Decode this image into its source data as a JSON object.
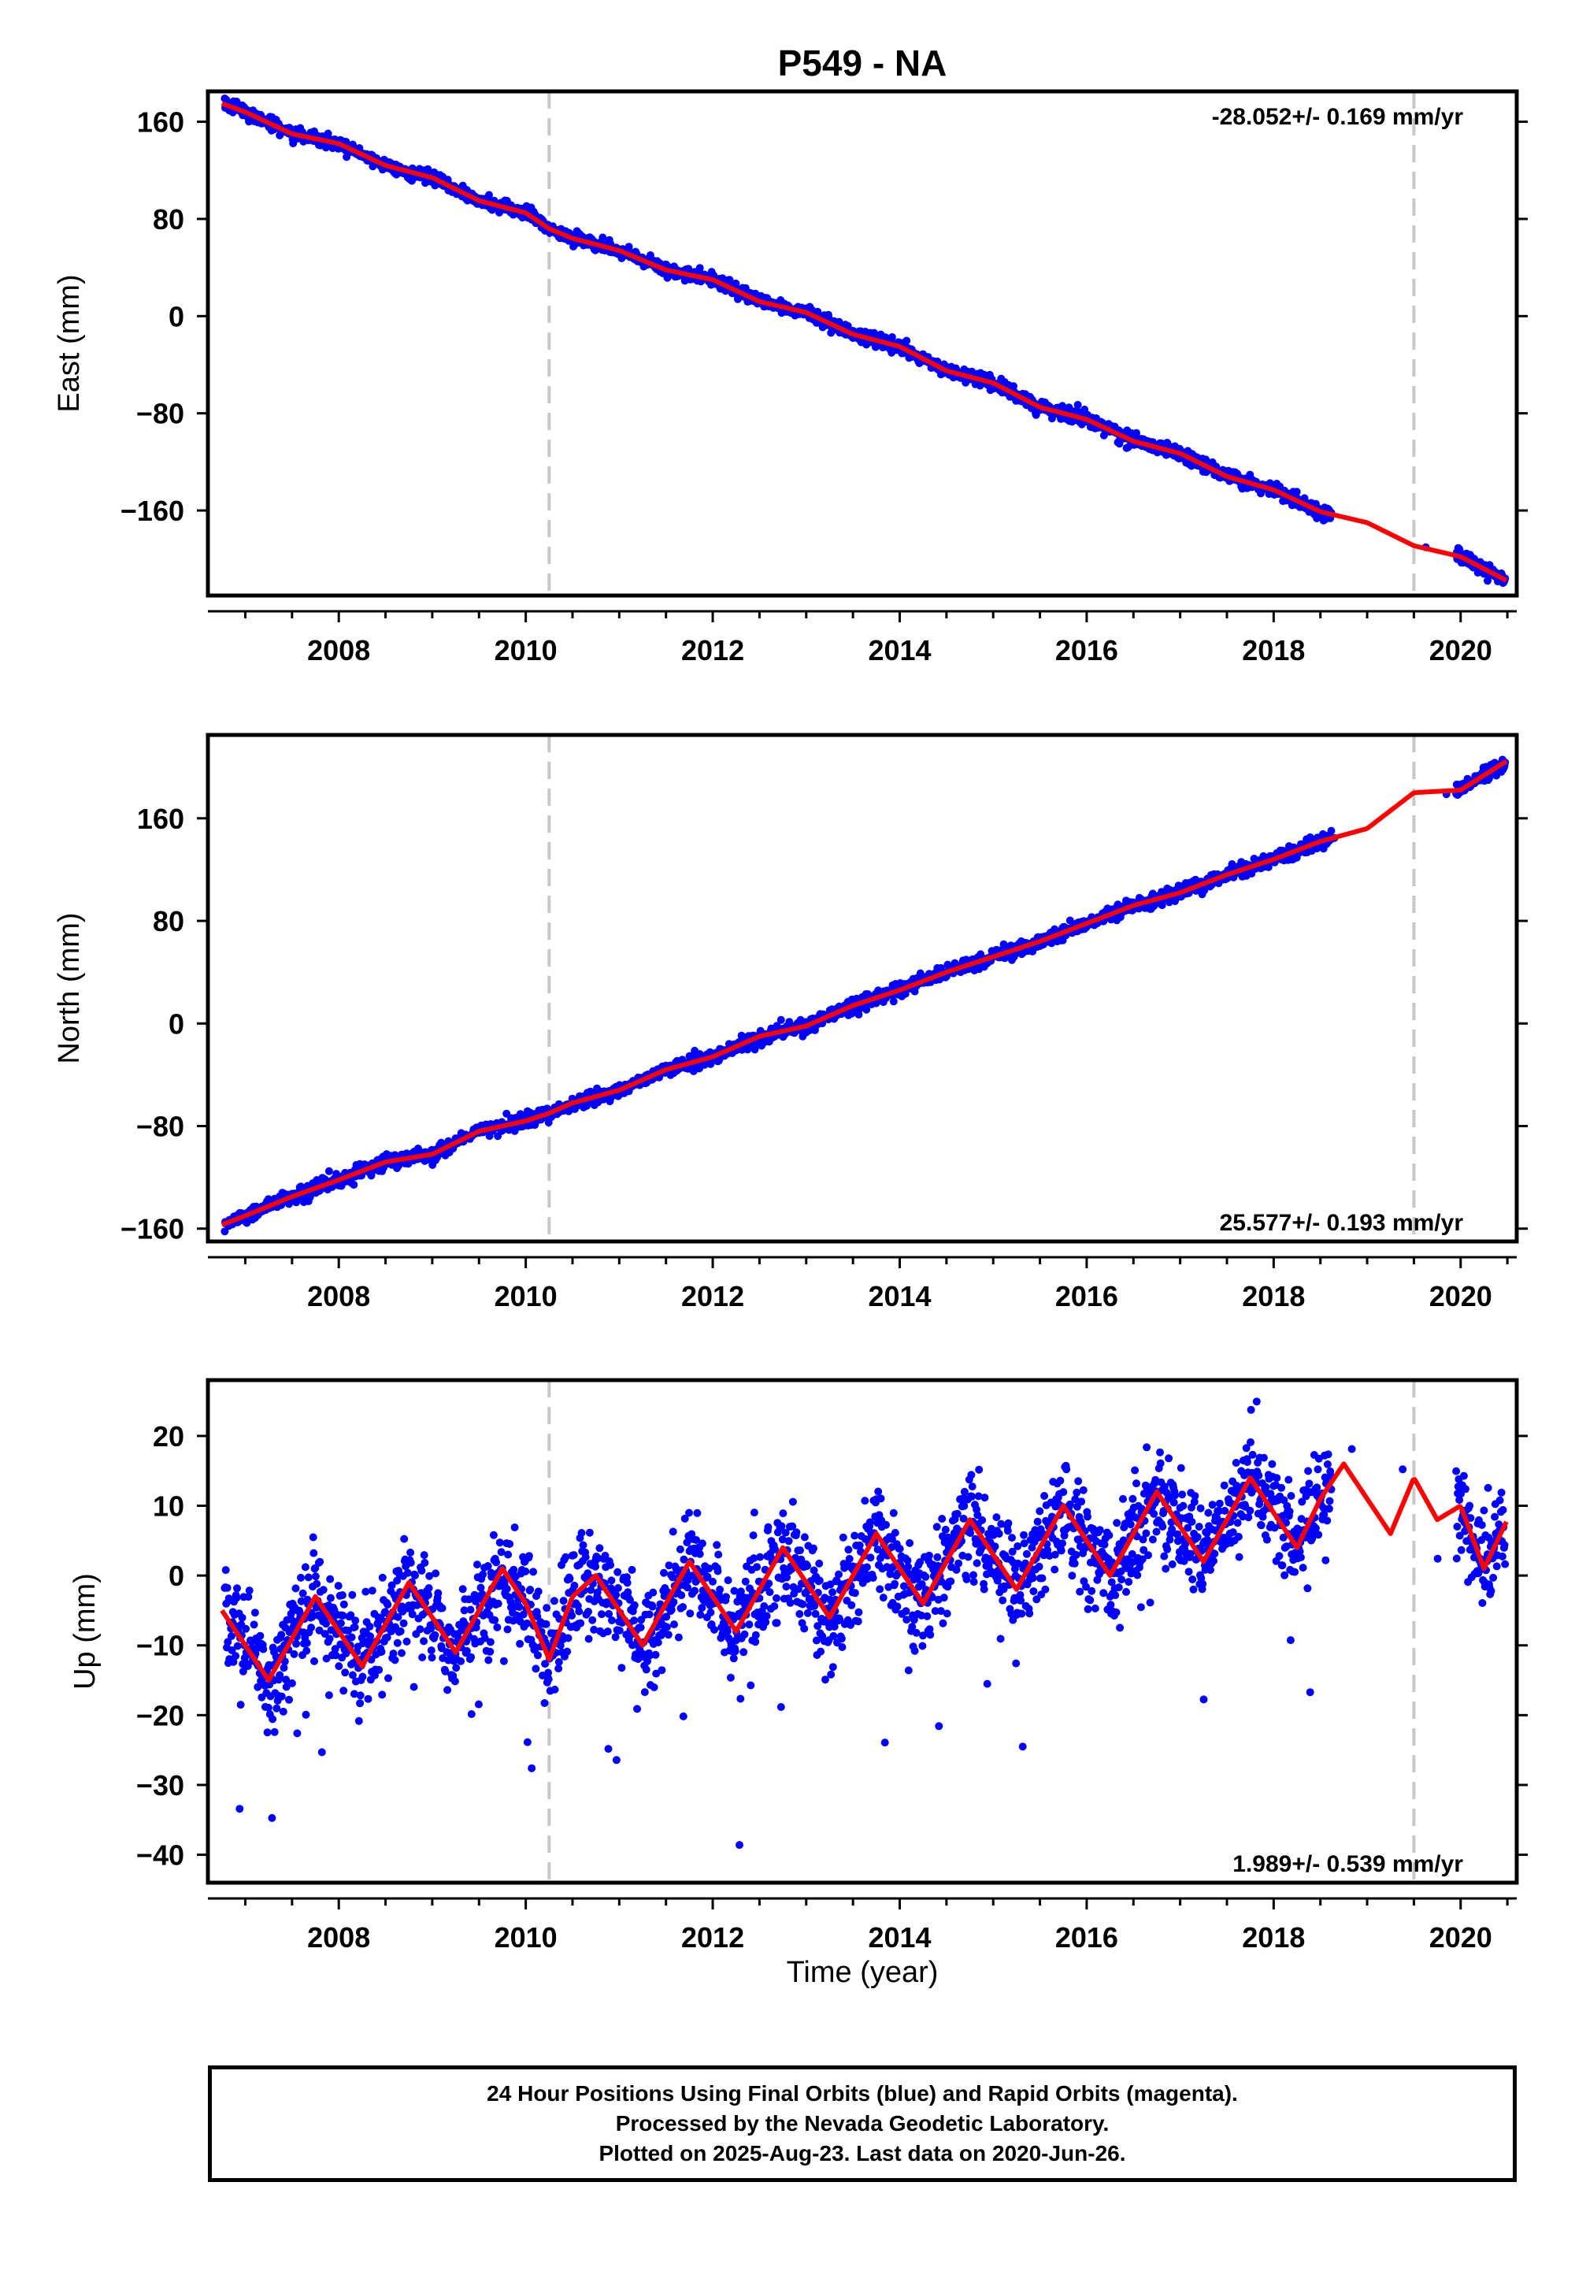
{
  "title": "P549 - NA",
  "xlabel": "Time (year)",
  "colors": {
    "data": "#0000ff",
    "model": "#ff0000",
    "break_line": "#c8c8c8",
    "frame": "#000000"
  },
  "chart_data": [
    {
      "type": "scatter",
      "name": "East",
      "ylabel": "East (mm)",
      "rate_label": "-28.052+/- 0.169 mm/yr",
      "rate_position": "top-right",
      "xlim": [
        2006.6,
        2020.6
      ],
      "ylim": [
        -230,
        185
      ],
      "xticks": [
        2008,
        2010,
        2012,
        2014,
        2016,
        2018,
        2020
      ],
      "yticks": [
        160,
        80,
        0,
        -80,
        -160
      ],
      "ytick_labels": [
        "160",
        "80",
        "0",
        "−80",
        "−160"
      ],
      "breaks": [
        2010.25,
        2019.5
      ],
      "model_x": [
        2006.75,
        2007.0,
        2007.5,
        2008.0,
        2008.5,
        2009.0,
        2009.5,
        2010.0,
        2010.25,
        2010.5,
        2011.0,
        2011.5,
        2012.0,
        2012.5,
        2013.0,
        2013.5,
        2014.0,
        2014.5,
        2015.0,
        2015.5,
        2016.0,
        2016.5,
        2017.0,
        2017.5,
        2018.0,
        2018.5,
        2019.0,
        2019.5,
        2020.0,
        2020.5
      ],
      "model_y": [
        175,
        168,
        150,
        142,
        124,
        114,
        95,
        85,
        72,
        64,
        54,
        38,
        30,
        12,
        3,
        -15,
        -25,
        -45,
        -55,
        -75,
        -85,
        -103,
        -113,
        -132,
        -143,
        -161,
        -170,
        -189,
        -198,
        -218
      ]
    },
    {
      "type": "scatter",
      "name": "North",
      "ylabel": "North (mm)",
      "rate_label": "25.577+/- 0.193 mm/yr",
      "rate_position": "bottom-right",
      "xlim": [
        2006.6,
        2020.6
      ],
      "ylim": [
        -170,
        225
      ],
      "xticks": [
        2008,
        2010,
        2012,
        2014,
        2016,
        2018,
        2020
      ],
      "yticks": [
        160,
        80,
        0,
        -80,
        -160
      ],
      "ytick_labels": [
        "160",
        "80",
        "0",
        "−80",
        "−160"
      ],
      "breaks": [
        2010.25,
        2019.5
      ],
      "model_x": [
        2006.75,
        2007.0,
        2007.5,
        2008.0,
        2008.5,
        2009.0,
        2009.5,
        2010.0,
        2010.25,
        2010.5,
        2011.0,
        2011.5,
        2012.0,
        2012.5,
        2013.0,
        2013.5,
        2014.0,
        2014.5,
        2015.0,
        2015.5,
        2016.0,
        2016.5,
        2017.0,
        2017.5,
        2018.0,
        2018.5,
        2019.0,
        2019.5,
        2020.0,
        2020.5
      ],
      "model_y": [
        -157,
        -150,
        -135,
        -122,
        -108,
        -102,
        -84,
        -76,
        -70,
        -62,
        -52,
        -36,
        -26,
        -10,
        -2,
        14,
        26,
        40,
        52,
        64,
        78,
        92,
        102,
        116,
        128,
        142,
        152,
        180,
        182,
        205
      ]
    },
    {
      "type": "scatter",
      "name": "Up",
      "ylabel": "Up (mm)",
      "rate_label": "1.989+/- 0.539 mm/yr",
      "rate_position": "bottom-right",
      "xlim": [
        2006.6,
        2020.6
      ],
      "ylim": [
        -44,
        28
      ],
      "xticks": [
        2008,
        2010,
        2012,
        2014,
        2016,
        2018,
        2020
      ],
      "yticks": [
        20,
        10,
        0,
        -10,
        -20,
        -30,
        -40
      ],
      "ytick_labels": [
        "20",
        "10",
        "0",
        "−10",
        "−20",
        "−30",
        "−40"
      ],
      "breaks": [
        2010.25,
        2019.5
      ],
      "model_x": [
        2006.75,
        2007.0,
        2007.25,
        2007.5,
        2007.75,
        2008.0,
        2008.25,
        2008.5,
        2008.75,
        2009.0,
        2009.25,
        2009.5,
        2009.75,
        2010.0,
        2010.25,
        2010.5,
        2010.75,
        2011.0,
        2011.25,
        2011.5,
        2011.75,
        2012.0,
        2012.25,
        2012.5,
        2012.75,
        2013.0,
        2013.25,
        2013.5,
        2013.75,
        2014.0,
        2014.25,
        2014.5,
        2014.75,
        2015.0,
        2015.25,
        2015.5,
        2015.75,
        2016.0,
        2016.25,
        2016.5,
        2016.75,
        2017.0,
        2017.25,
        2017.5,
        2017.75,
        2018.0,
        2018.25,
        2018.5,
        2018.75,
        2019.0,
        2019.25,
        2019.5,
        2019.75,
        2020.0,
        2020.25,
        2020.5
      ],
      "model_y": [
        -5,
        -10,
        -15,
        -9,
        -3,
        -8,
        -13,
        -7,
        -1,
        -6,
        -11,
        -5,
        1,
        -4,
        -12,
        -3,
        0,
        -5,
        -10,
        -4,
        2,
        -3,
        -8,
        -2,
        4,
        -1,
        -6,
        0,
        6,
        1,
        -4,
        2,
        8,
        3,
        -2,
        4,
        10,
        5,
        0,
        6,
        12,
        7,
        2,
        8,
        14,
        9,
        4,
        11,
        16,
        11,
        6,
        14,
        8,
        10,
        1,
        8
      ]
    }
  ],
  "footer": {
    "line1": "24 Hour Positions Using Final Orbits (blue) and Rapid Orbits (magenta).",
    "line2": "Processed by the Nevada Geodetic Laboratory.",
    "line3": "Plotted on 2025-Aug-23. Last data on 2020-Jun-26."
  }
}
